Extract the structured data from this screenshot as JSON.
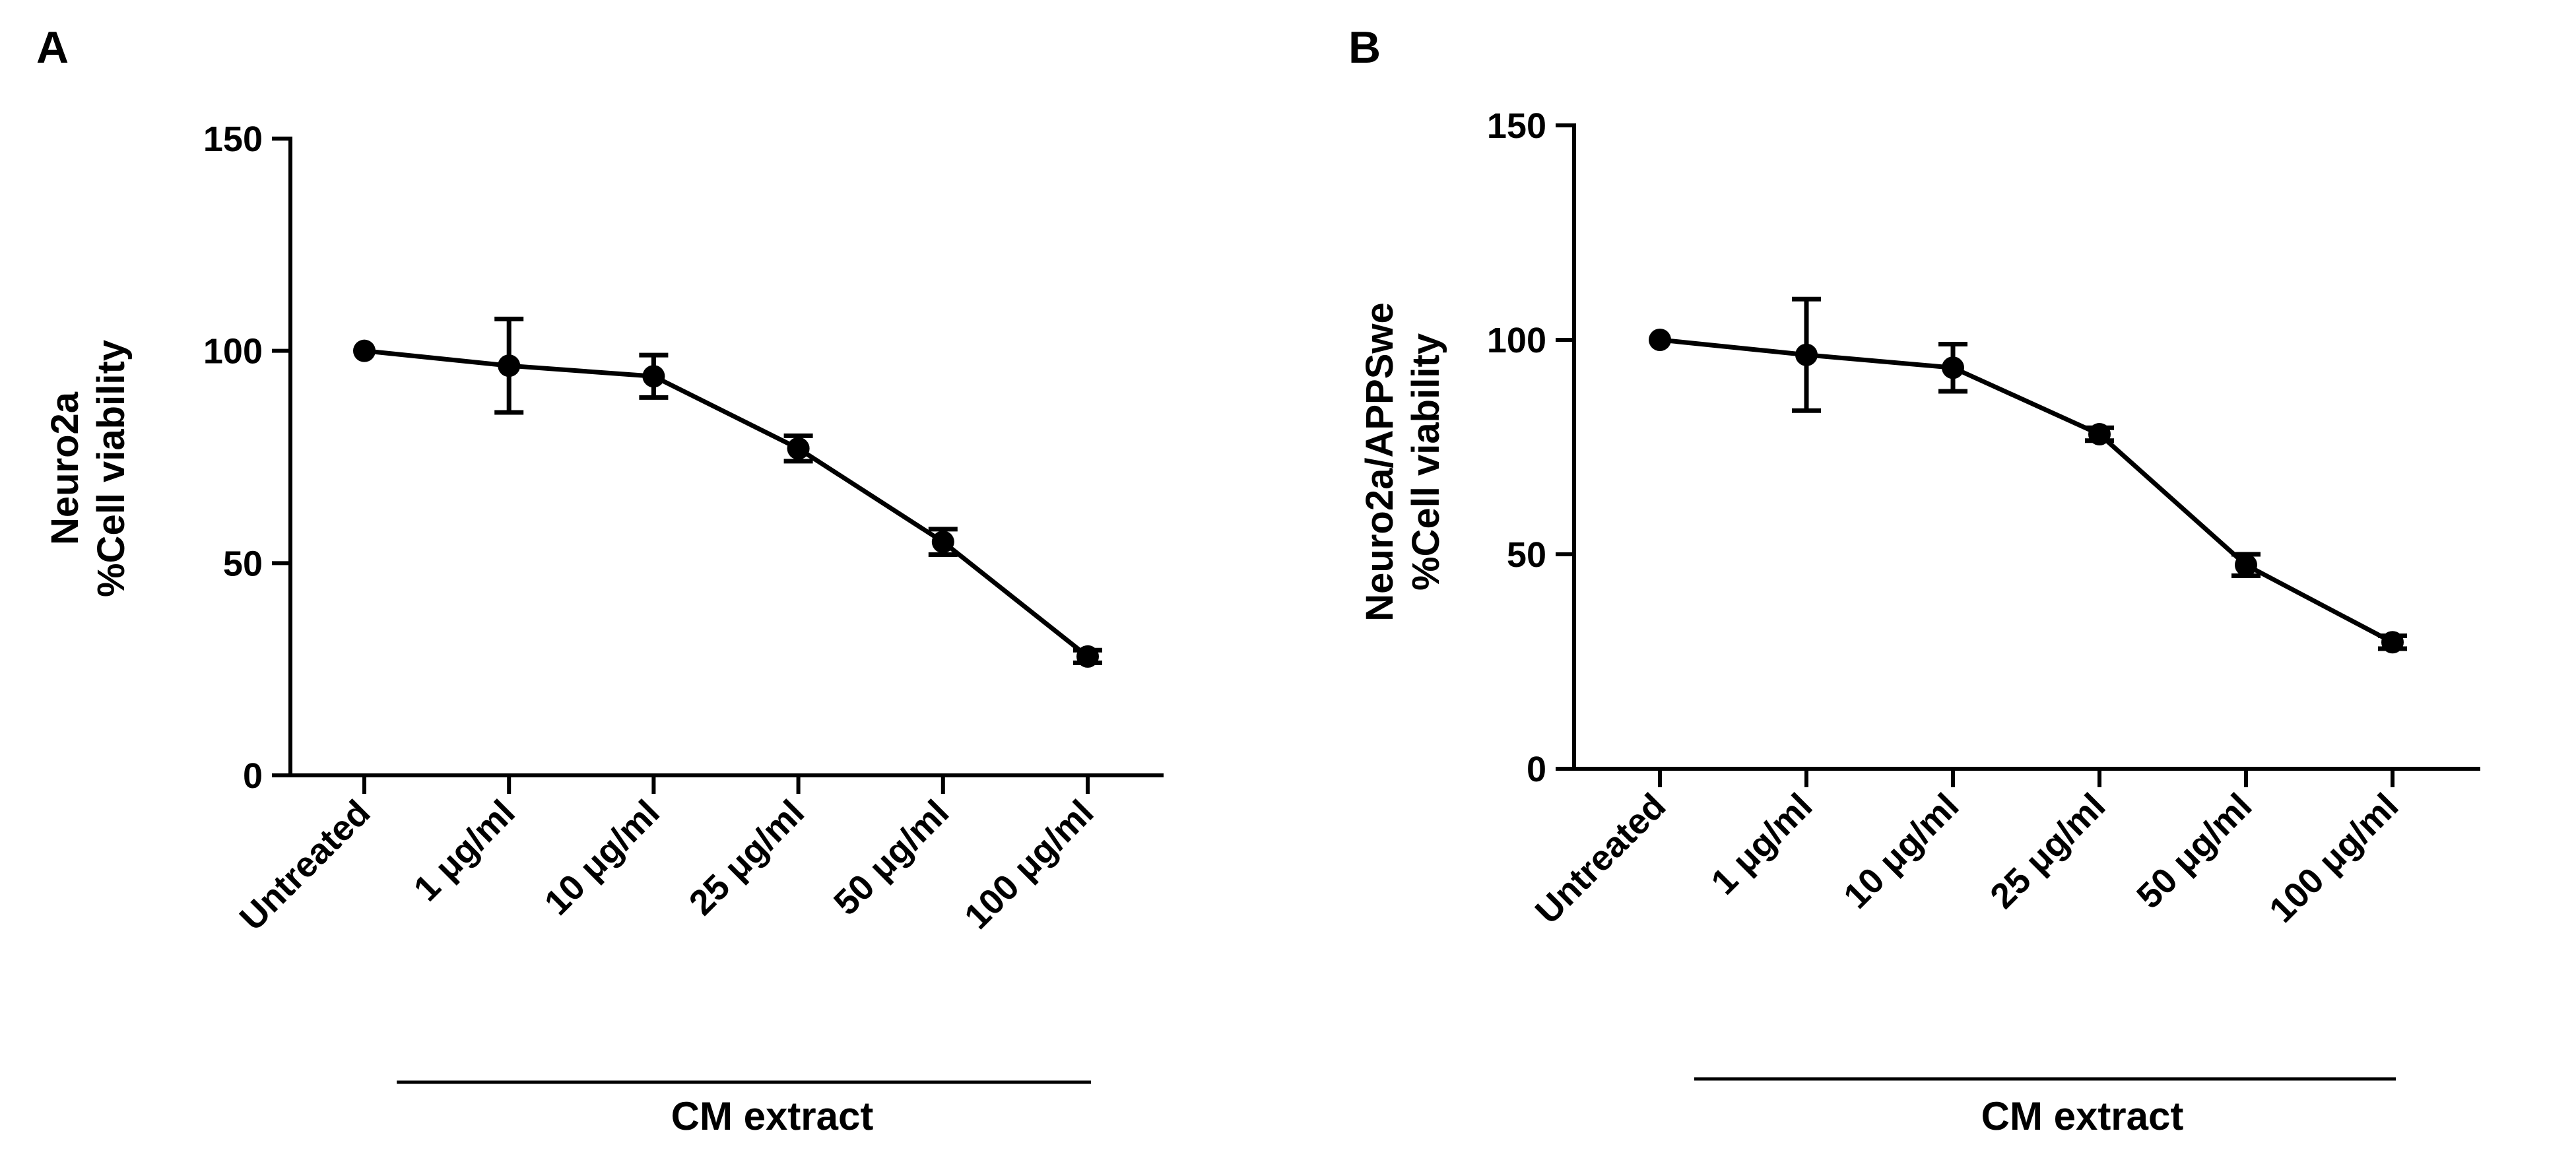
{
  "chart_data": [
    {
      "type": "line",
      "panel_label": "A",
      "ylabel_lines": [
        "Neuro2a",
        "%Cell viability"
      ],
      "xlabel": "",
      "categories": [
        "Untreated",
        "1 μg/ml",
        "10 μg/ml",
        "25 μg/ml",
        "50 μg/ml",
        "100 μg/ml"
      ],
      "series": [
        {
          "name": "Neuro2a",
          "values": [
            100,
            96.5,
            94,
            77,
            55,
            28
          ],
          "errors": [
            0,
            11,
            5,
            3,
            3,
            1.5
          ]
        }
      ],
      "ylim": [
        0,
        150
      ],
      "yticks": [
        "0",
        "50",
        "100",
        "150"
      ],
      "group_bracket": {
        "label": "CM extract",
        "from_category": 1,
        "to_category": 5
      },
      "grid": false,
      "color": "#000000"
    },
    {
      "type": "line",
      "panel_label": "B",
      "ylabel_lines": [
        "Neuro2a/APPSwe",
        "%Cell viability"
      ],
      "xlabel": "",
      "categories": [
        "Untreated",
        "1 μg/ml",
        "10 μg/ml",
        "25 μg/ml",
        "50 μg/ml",
        "100 μg/ml"
      ],
      "series": [
        {
          "name": "Neuro2a/APPSwe",
          "values": [
            100,
            96.5,
            93.5,
            78,
            47.5,
            29.5
          ],
          "errors": [
            0,
            13,
            5.5,
            1.5,
            2.5,
            1.5
          ]
        }
      ],
      "ylim": [
        0,
        150
      ],
      "yticks": [
        "0",
        "50",
        "100",
        "150"
      ],
      "group_bracket": {
        "label": "CM extract",
        "from_category": 1,
        "to_category": 5
      },
      "grid": false,
      "color": "#000000"
    }
  ]
}
